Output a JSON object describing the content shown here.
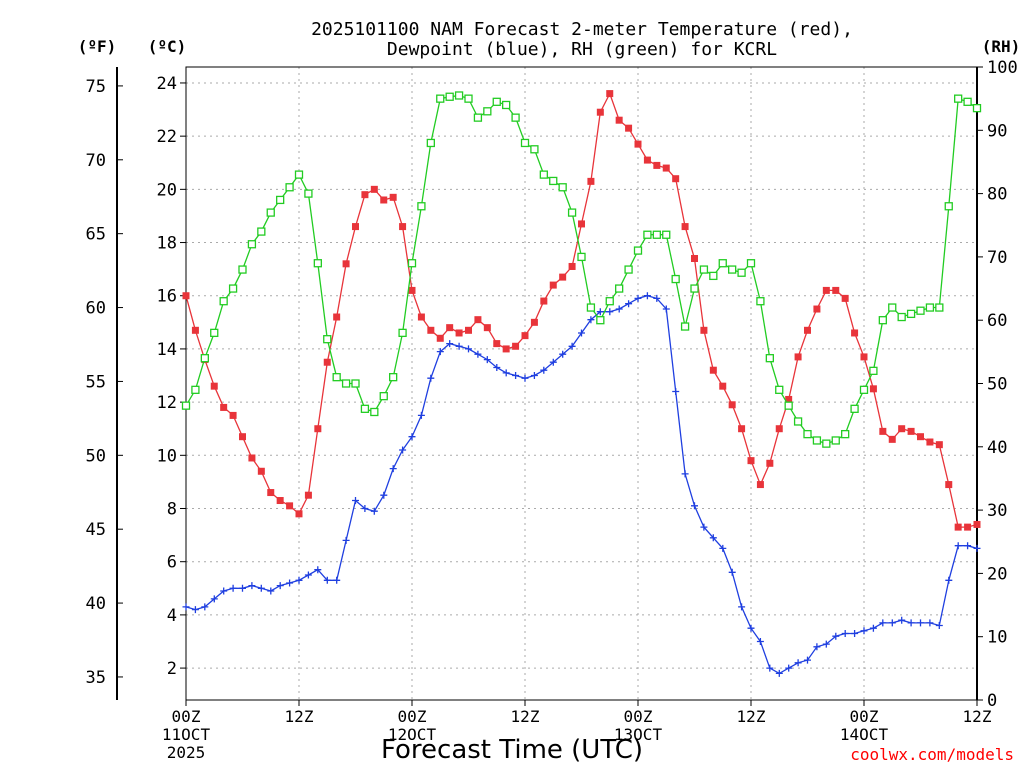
{
  "chart_data": {
    "type": "line",
    "title_lines": [
      "2025101100 NAM Forecast 2-meter Temperature (red),",
      "Dewpoint (blue), RH (green) for KCRL"
    ],
    "xlabel": "Forecast Time (UTC)",
    "credit": "coolwx.com/models",
    "units": {
      "fahrenheit": "(ºF)",
      "celsius": "(ºC)",
      "rh": "(RH)"
    },
    "x_range_hours": [
      0,
      84
    ],
    "x_ticks": [
      {
        "hour": 0,
        "lines": [
          "00Z",
          "11OCT",
          "2025"
        ]
      },
      {
        "hour": 12,
        "lines": [
          "12Z"
        ]
      },
      {
        "hour": 24,
        "lines": [
          "00Z",
          "12OCT"
        ]
      },
      {
        "hour": 36,
        "lines": [
          "12Z"
        ]
      },
      {
        "hour": 48,
        "lines": [
          "00Z",
          "13OCT"
        ]
      },
      {
        "hour": 60,
        "lines": [
          "12Z"
        ]
      },
      {
        "hour": 72,
        "lines": [
          "00Z",
          "14OCT"
        ]
      },
      {
        "hour": 84,
        "lines": [
          "12Z"
        ]
      }
    ],
    "y_left_celsius": {
      "range": [
        0.8,
        24.6
      ],
      "ticks": [
        2,
        4,
        6,
        8,
        10,
        12,
        14,
        16,
        18,
        20,
        22,
        24
      ]
    },
    "y_left_fahrenheit": {
      "ticks": [
        35,
        40,
        45,
        50,
        55,
        60,
        65,
        70,
        75
      ]
    },
    "y_right_rh": {
      "range": [
        0,
        100
      ],
      "ticks": [
        0,
        10,
        20,
        30,
        40,
        50,
        60,
        70,
        80,
        90,
        100
      ]
    },
    "series": [
      {
        "name": "Temperature",
        "units": "C",
        "color": "#e8343a",
        "marker": "filled-square",
        "values": [
          16.0,
          14.7,
          13.6,
          12.6,
          11.8,
          11.5,
          10.7,
          9.9,
          9.4,
          8.6,
          8.3,
          8.1,
          7.8,
          8.5,
          11.0,
          13.5,
          15.2,
          17.2,
          18.6,
          19.8,
          20.0,
          19.6,
          19.7,
          18.6,
          16.2,
          15.2,
          14.7,
          14.4,
          14.8,
          14.6,
          14.7,
          15.1,
          14.8,
          14.2,
          14.0,
          14.1,
          14.5,
          15.0,
          15.8,
          16.4,
          16.7,
          17.1,
          18.7,
          20.3,
          22.9,
          23.6,
          22.6,
          22.3,
          21.7,
          21.1,
          20.9,
          20.8,
          20.4,
          18.6,
          17.4,
          14.7,
          13.2,
          12.6,
          11.9,
          11.0,
          9.8,
          8.9,
          9.7,
          11.0,
          12.1,
          13.7,
          14.7,
          15.5,
          16.2,
          16.2,
          15.9,
          14.6,
          13.7,
          12.5,
          10.9,
          10.6,
          11.0,
          10.9,
          10.7,
          10.5,
          10.4,
          8.9,
          7.3,
          7.3,
          7.4
        ]
      },
      {
        "name": "Dewpoint",
        "units": "C",
        "color": "#1f3fe0",
        "marker": "plus",
        "values": [
          4.3,
          4.2,
          4.3,
          4.6,
          4.9,
          5.0,
          5.0,
          5.1,
          5.0,
          4.9,
          5.1,
          5.2,
          5.3,
          5.5,
          5.7,
          5.3,
          5.3,
          6.8,
          8.3,
          8.0,
          7.9,
          8.5,
          9.5,
          10.2,
          10.7,
          11.5,
          12.9,
          13.9,
          14.2,
          14.1,
          14.0,
          13.8,
          13.6,
          13.3,
          13.1,
          13.0,
          12.9,
          13.0,
          13.2,
          13.5,
          13.8,
          14.1,
          14.6,
          15.1,
          15.4,
          15.4,
          15.5,
          15.7,
          15.9,
          16.0,
          15.9,
          15.5,
          12.4,
          9.3,
          8.1,
          7.3,
          6.9,
          6.5,
          5.6,
          4.3,
          3.5,
          3.0,
          2.0,
          1.8,
          2.0,
          2.2,
          2.3,
          2.8,
          2.9,
          3.2,
          3.3,
          3.3,
          3.4,
          3.5,
          3.7,
          3.7,
          3.8,
          3.7,
          3.7,
          3.7,
          3.6,
          5.3,
          6.6,
          6.6,
          6.5
        ]
      },
      {
        "name": "Relative Humidity",
        "units": "%",
        "color": "#22cc22",
        "marker": "open-square",
        "values": [
          46.5,
          49,
          54,
          58,
          63,
          65,
          68,
          72,
          74,
          77,
          79,
          81,
          83,
          80,
          69,
          57,
          51,
          50,
          50,
          46,
          45.5,
          48,
          51,
          58,
          69,
          78,
          88,
          95,
          95.3,
          95.5,
          95,
          92,
          93,
          94.5,
          94,
          92,
          88,
          87,
          83,
          82,
          81,
          77,
          70,
          62,
          60,
          63,
          65,
          68,
          71,
          73.5,
          73.5,
          73.5,
          66.5,
          59,
          65,
          68,
          67,
          69,
          68,
          67.5,
          69,
          63,
          54,
          49,
          46.5,
          44,
          42,
          41,
          40.5,
          41,
          42,
          46,
          49,
          52,
          60,
          62,
          60.5,
          61,
          61.5,
          62,
          62,
          78,
          95,
          94.5,
          93.5
        ]
      }
    ]
  }
}
